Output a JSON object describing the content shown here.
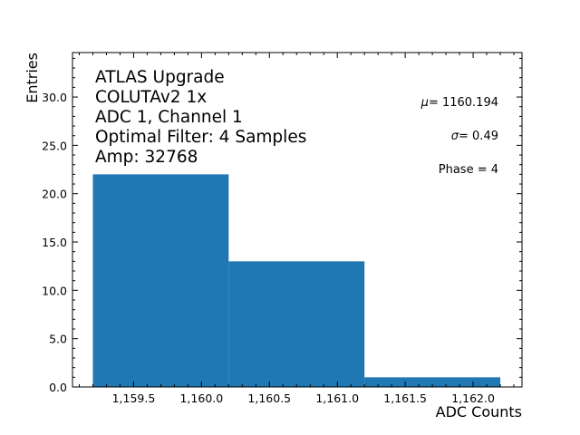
{
  "chart_data": {
    "type": "bar",
    "subtype": "histogram",
    "title": "",
    "xlabel": "ADC Counts",
    "ylabel": "Entries",
    "bins": [
      {
        "left": 1159.2,
        "right": 1160.2,
        "count": 22
      },
      {
        "left": 1160.2,
        "right": 1161.2,
        "count": 13
      },
      {
        "left": 1161.2,
        "right": 1162.2,
        "count": 1
      }
    ],
    "categories": [
      "1159.2-1160.2",
      "1160.2-1161.2",
      "1161.2-1162.2"
    ],
    "values": [
      22,
      13,
      1
    ],
    "xlim": [
      1159.05,
      1162.36
    ],
    "ylim": [
      0,
      34.6
    ],
    "xticks": [
      "1,159.5",
      "1,160.0",
      "1,160.5",
      "1,161.0",
      "1,161.5",
      "1,162.0"
    ],
    "xtick_values": [
      1159.5,
      1160.0,
      1160.5,
      1161.0,
      1161.5,
      1162.0
    ],
    "yticks": [
      "0.0",
      "5.0",
      "10.0",
      "15.0",
      "20.0",
      "25.0",
      "30.0"
    ],
    "ytick_values": [
      0,
      5,
      10,
      15,
      20,
      25,
      30
    ],
    "grid": false,
    "bar_color": "#1f77b4",
    "annotations_left": [
      "ATLAS Upgrade",
      "COLUTAv2 1x",
      "ADC 1, Channel 1",
      "Optimal Filter: 4 Samples",
      "Amp: 32768"
    ],
    "annotations_right": [
      "μ = 1160.194",
      "σ = 0.49",
      "Phase = 4"
    ]
  },
  "labels": {
    "x": "ADC Counts",
    "y": "Entries"
  },
  "info": {
    "line1": "ATLAS Upgrade",
    "line2": "COLUTAv2 1x",
    "line3": "ADC 1, Channel 1",
    "line4": "Optimal Filter: 4 Samples",
    "line5": "Amp: 32768"
  },
  "stats": {
    "mu_symbol": "μ",
    "mu_value": "= 1160.194",
    "sigma_symbol": "σ",
    "sigma_value": "= 0.49",
    "phase": "Phase = 4"
  }
}
